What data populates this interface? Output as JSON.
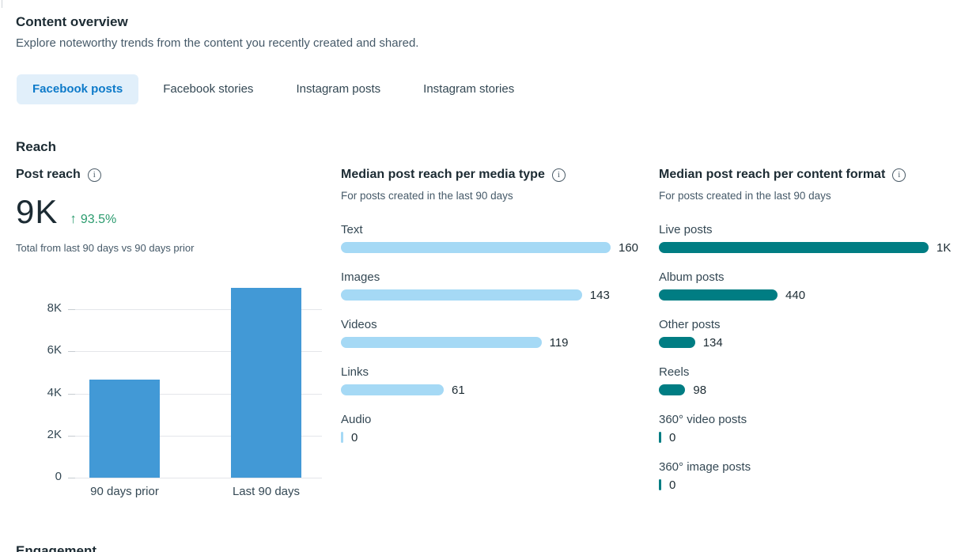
{
  "page": {
    "title": "Content overview",
    "subtitle": "Explore noteworthy trends from the content you recently created and shared."
  },
  "tabs": [
    {
      "label": "Facebook posts",
      "active": true
    },
    {
      "label": "Facebook stories",
      "active": false
    },
    {
      "label": "Instagram posts",
      "active": false
    },
    {
      "label": "Instagram stories",
      "active": false
    }
  ],
  "sections": {
    "reach_heading": "Reach",
    "engagement_heading": "Engagement"
  },
  "post_reach": {
    "title": "Post reach",
    "total": "9K",
    "change": "93.5%",
    "change_direction": "up",
    "caption": "Total from last 90 days vs 90 days prior"
  },
  "icons": {
    "trend_up": "↑",
    "info": "i"
  },
  "chart_data": [
    {
      "type": "bar",
      "title": "Post reach",
      "categories": [
        "90 days prior",
        "Last 90 days"
      ],
      "values": [
        4650,
        9000
      ],
      "ylim": [
        0,
        8000
      ],
      "yticks": [
        0,
        2000,
        4000,
        6000,
        8000
      ],
      "ytick_labels": [
        "0",
        "2K",
        "4K",
        "6K",
        "8K"
      ],
      "grid": true,
      "bar_color": "#4299d6"
    },
    {
      "type": "bar",
      "orientation": "horizontal",
      "title": "Median post reach per media type",
      "subtitle": "For posts created in the last 90 days",
      "categories": [
        "Text",
        "Images",
        "Videos",
        "Links",
        "Audio"
      ],
      "values": [
        160,
        143,
        119,
        61,
        0
      ],
      "value_labels": [
        "160",
        "143",
        "119",
        "61",
        "0"
      ],
      "xlim": [
        0,
        160
      ],
      "bar_color": "#a5d9f5"
    },
    {
      "type": "bar",
      "orientation": "horizontal",
      "title": "Median post reach per content format",
      "subtitle": "For posts created in the last 90 days",
      "categories": [
        "Live posts",
        "Album posts",
        "Other posts",
        "Reels",
        "360° video posts",
        "360° image posts"
      ],
      "values": [
        1000,
        440,
        134,
        98,
        0,
        0
      ],
      "value_labels": [
        "1K",
        "440",
        "134",
        "98",
        "0",
        "0"
      ],
      "xlim": [
        0,
        1000
      ],
      "bar_color": "#007d83"
    }
  ],
  "colors": {
    "text_dark": "#1c2b33",
    "text_gray": "#465a69",
    "trend_green": "#2b9b6e",
    "active_tab_bg": "#e1effa",
    "active_tab_text": "#0d7ac9",
    "grid_line": "#e4e6ea",
    "bar_blue": "#4299d6",
    "bar_light_blue": "#a5d9f5",
    "bar_teal": "#007d83"
  }
}
